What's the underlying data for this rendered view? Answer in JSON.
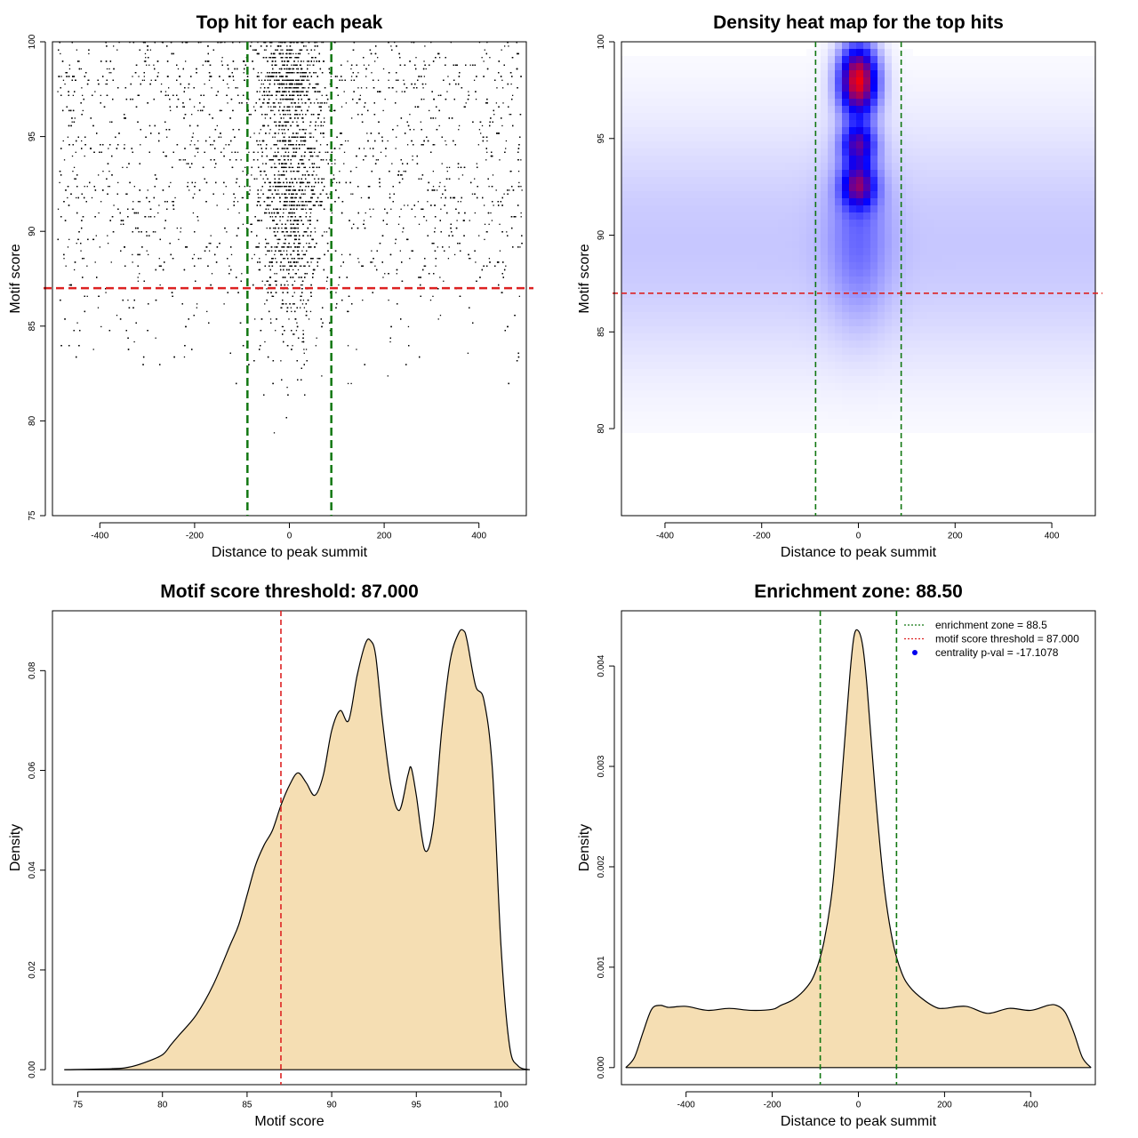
{
  "chart_data": [
    {
      "id": "scatter-panel",
      "type": "scatter",
      "title": "Top hit for each peak",
      "xlabel": "Distance to peak summit",
      "ylabel": "Motif score",
      "xlim": [
        -500,
        500
      ],
      "ylim": [
        75,
        100
      ],
      "xticks": [
        -400,
        -200,
        0,
        200,
        400
      ],
      "yticks": [
        75,
        80,
        85,
        90,
        95,
        100
      ],
      "hlines": [
        {
          "y": 87.0,
          "color": "#dd2222",
          "style": "dashed"
        }
      ],
      "vlines": [
        {
          "x": -88.5,
          "color": "#117711",
          "style": "dashed"
        },
        {
          "x": 88.5,
          "color": "#117711",
          "style": "dashed"
        }
      ],
      "point_color": "#000000",
      "description_points": {
        "n_points": 9000,
        "central_fraction": 0.45,
        "central_sd": 35,
        "score_modes": [
          {
            "mean": 97.8,
            "sd": 1.4,
            "weight": 0.38
          },
          {
            "mean": 94.6,
            "sd": 0.7,
            "weight": 0.12
          },
          {
            "mean": 92.3,
            "sd": 1.0,
            "weight": 0.2
          },
          {
            "mean": 89.5,
            "sd": 1.6,
            "weight": 0.2
          },
          {
            "mean": 86.0,
            "sd": 2.2,
            "weight": 0.1
          }
        ]
      }
    },
    {
      "id": "heatmap-panel",
      "type": "heatmap",
      "title": "Density heat map for the top hits",
      "xlabel": "Distance to peak summit",
      "ylabel": "Motif score",
      "xlim": [
        -490,
        490
      ],
      "ylim": [
        75.5,
        100
      ],
      "xticks": [
        -400,
        -200,
        0,
        200,
        400
      ],
      "yticks": [
        80,
        85,
        90,
        95,
        100
      ],
      "hlines": [
        {
          "y": 87.0,
          "color": "#dd2222",
          "style": "dashed"
        }
      ],
      "vlines": [
        {
          "x": -88.5,
          "color": "#117711",
          "style": "dashed"
        },
        {
          "x": 88.5,
          "color": "#117711",
          "style": "dashed"
        }
      ],
      "color_scale": [
        "#ffffff",
        "#0000ff",
        "#ff0000"
      ],
      "hotspots": [
        {
          "x": 0,
          "y": 98.0,
          "sx": 28,
          "sy": 1.3,
          "w": 1.0
        },
        {
          "x": 0,
          "y": 94.7,
          "sx": 25,
          "sy": 0.7,
          "w": 0.55
        },
        {
          "x": 0,
          "y": 92.6,
          "sx": 25,
          "sy": 0.8,
          "w": 0.6
        },
        {
          "x": 0,
          "y": 90.0,
          "sx": 45,
          "sy": 3.0,
          "w": 0.2
        }
      ],
      "background_density": {
        "y_center": 89.5,
        "y_sd": 4.5,
        "level": 0.11
      }
    },
    {
      "id": "score-density-panel",
      "type": "area",
      "title": "Motif score threshold: 87.000",
      "xlabel": "Motif score",
      "ylabel": "Density",
      "xlim": [
        73.5,
        101.5
      ],
      "ylim": [
        -0.003,
        0.092
      ],
      "xticks": [
        75,
        80,
        85,
        90,
        95,
        100
      ],
      "yticks": [
        0.0,
        0.02,
        0.04,
        0.06,
        0.08
      ],
      "ytick_labels": [
        "0.00",
        "0.02",
        "0.04",
        "0.06",
        "0.08"
      ],
      "fill": "#f5deb3",
      "vlines": [
        {
          "x": 87.0,
          "color": "#dd2222",
          "style": "dashed"
        }
      ],
      "x": [
        74.2,
        77,
        78,
        79,
        80,
        80.5,
        81,
        82,
        83,
        84,
        84.5,
        85,
        85.5,
        86,
        86.5,
        87,
        87.5,
        88,
        88.5,
        89,
        89.5,
        90,
        90.5,
        91,
        91.5,
        92,
        92.3,
        92.6,
        93,
        93.5,
        94,
        94.5,
        94.7,
        95,
        95.5,
        96,
        96.5,
        97,
        97.5,
        97.8,
        98,
        98.5,
        99,
        99.5,
        100,
        100.5,
        101,
        101.7
      ],
      "y": [
        0.0,
        0.0002,
        0.0005,
        0.0015,
        0.003,
        0.005,
        0.007,
        0.011,
        0.017,
        0.025,
        0.029,
        0.035,
        0.041,
        0.045,
        0.048,
        0.053,
        0.057,
        0.0595,
        0.0575,
        0.055,
        0.059,
        0.068,
        0.072,
        0.07,
        0.079,
        0.0855,
        0.086,
        0.083,
        0.07,
        0.057,
        0.052,
        0.059,
        0.0605,
        0.055,
        0.044,
        0.049,
        0.068,
        0.082,
        0.0875,
        0.088,
        0.086,
        0.077,
        0.074,
        0.06,
        0.025,
        0.005,
        0.0008,
        0.0
      ]
    },
    {
      "id": "distance-density-panel",
      "type": "area",
      "title": "Enrichment zone: 88.50",
      "xlabel": "Distance to peak summit",
      "ylabel": "Density",
      "xlim": [
        -550,
        550
      ],
      "ylim": [
        -0.00017,
        0.00455
      ],
      "xticks": [
        -400,
        -200,
        0,
        200,
        400
      ],
      "yticks": [
        0.0,
        0.001,
        0.002,
        0.003,
        0.004
      ],
      "ytick_labels": [
        "0.000",
        "0.001",
        "0.002",
        "0.003",
        "0.004"
      ],
      "fill": "#f5deb3",
      "vlines": [
        {
          "x": -88.5,
          "color": "#117711",
          "style": "dashed"
        },
        {
          "x": 88.5,
          "color": "#117711",
          "style": "dashed"
        }
      ],
      "x": [
        -540,
        -520,
        -500,
        -480,
        -460,
        -440,
        -400,
        -350,
        -300,
        -250,
        -200,
        -180,
        -150,
        -120,
        -100,
        -80,
        -60,
        -40,
        -20,
        -10,
        0,
        10,
        20,
        40,
        60,
        80,
        100,
        120,
        150,
        180,
        200,
        250,
        300,
        350,
        400,
        440,
        460,
        480,
        500,
        520,
        540
      ],
      "y": [
        0.0,
        0.0001,
        0.00035,
        0.00058,
        0.00062,
        0.0006,
        0.00061,
        0.00057,
        0.00059,
        0.00057,
        0.00058,
        0.00062,
        0.00068,
        0.0008,
        0.00095,
        0.00125,
        0.0018,
        0.0028,
        0.0039,
        0.0043,
        0.00435,
        0.0042,
        0.0038,
        0.0027,
        0.0018,
        0.00125,
        0.00095,
        0.0008,
        0.00068,
        0.0006,
        0.00059,
        0.00061,
        0.00054,
        0.00059,
        0.00057,
        0.00062,
        0.00062,
        0.00055,
        0.00035,
        0.0001,
        0.0
      ],
      "legend": {
        "position": "top-right",
        "items": [
          {
            "label": "enrichment zone = 88.5",
            "color": "#117711",
            "kind": "dotted-line"
          },
          {
            "label": "motif score threshold = 87.000",
            "color": "#dd2222",
            "kind": "dotted-line"
          },
          {
            "label": "centrality p-val = -17.1078",
            "color": "#0000ee",
            "kind": "point"
          }
        ]
      }
    }
  ]
}
